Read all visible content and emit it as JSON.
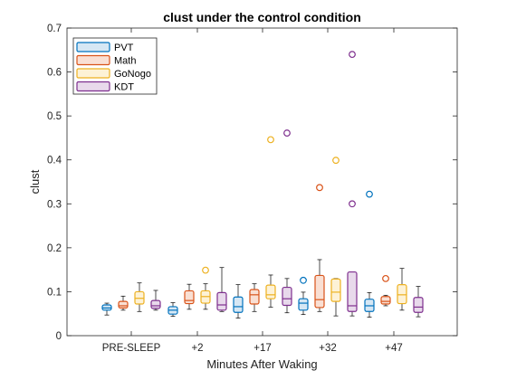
{
  "chart_data": {
    "type": "box",
    "title": "clust under the control condition",
    "xlabel": "Minutes After Waking",
    "ylabel": "clust",
    "ylim": [
      0,
      0.7
    ],
    "yticks": [
      "0",
      "0.1",
      "0.2",
      "0.3",
      "0.4",
      "0.5",
      "0.6",
      "0.7"
    ],
    "categories": [
      "PRE-SLEEP",
      "+2",
      "+17",
      "+32",
      "+47"
    ],
    "legend_position": "top-left",
    "grid": false,
    "series": [
      {
        "name": "PVT",
        "color": "#0072BD",
        "fill": "#d6e7f4",
        "boxes": [
          {
            "whisker_low": 0.047,
            "q1": 0.058,
            "median": 0.063,
            "q3": 0.07,
            "whisker_high": 0.074,
            "outliers": []
          },
          {
            "whisker_low": 0.044,
            "q1": 0.049,
            "median": 0.058,
            "q3": 0.066,
            "whisker_high": 0.075,
            "outliers": []
          },
          {
            "whisker_low": 0.04,
            "q1": 0.053,
            "median": 0.066,
            "q3": 0.088,
            "whisker_high": 0.116,
            "outliers": []
          },
          {
            "whisker_low": 0.048,
            "q1": 0.058,
            "median": 0.074,
            "q3": 0.084,
            "whisker_high": 0.099,
            "outliers": [
              0.126
            ]
          },
          {
            "whisker_low": 0.042,
            "q1": 0.055,
            "median": 0.068,
            "q3": 0.083,
            "whisker_high": 0.098,
            "outliers": [
              0.322
            ]
          }
        ]
      },
      {
        "name": "Math",
        "color": "#D95319",
        "fill": "#f9dfd3",
        "boxes": [
          {
            "whisker_low": 0.058,
            "q1": 0.063,
            "median": 0.068,
            "q3": 0.078,
            "whisker_high": 0.09,
            "outliers": []
          },
          {
            "whisker_low": 0.06,
            "q1": 0.073,
            "median": 0.08,
            "q3": 0.102,
            "whisker_high": 0.117,
            "outliers": []
          },
          {
            "whisker_low": 0.055,
            "q1": 0.072,
            "median": 0.093,
            "q3": 0.105,
            "whisker_high": 0.118,
            "outliers": []
          },
          {
            "whisker_low": 0.055,
            "q1": 0.064,
            "median": 0.082,
            "q3": 0.137,
            "whisker_high": 0.173,
            "outliers": [
              0.337
            ]
          },
          {
            "whisker_low": 0.068,
            "q1": 0.072,
            "median": 0.078,
            "q3": 0.089,
            "whisker_high": 0.092,
            "outliers": [
              0.13
            ]
          }
        ]
      },
      {
        "name": "GoNogo",
        "color": "#EDB120",
        "fill": "#fdf2d6",
        "boxes": [
          {
            "whisker_low": 0.055,
            "q1": 0.072,
            "median": 0.085,
            "q3": 0.1,
            "whisker_high": 0.12,
            "outliers": []
          },
          {
            "whisker_low": 0.06,
            "q1": 0.074,
            "median": 0.089,
            "q3": 0.102,
            "whisker_high": 0.118,
            "outliers": [
              0.149
            ]
          },
          {
            "whisker_low": 0.065,
            "q1": 0.084,
            "median": 0.093,
            "q3": 0.115,
            "whisker_high": 0.138,
            "outliers": [
              0.446
            ]
          },
          {
            "whisker_low": 0.045,
            "q1": 0.078,
            "median": 0.099,
            "q3": 0.129,
            "whisker_high": 0.13,
            "outliers": [
              0.399
            ]
          },
          {
            "whisker_low": 0.058,
            "q1": 0.073,
            "median": 0.093,
            "q3": 0.116,
            "whisker_high": 0.153,
            "outliers": []
          }
        ]
      },
      {
        "name": "KDT",
        "color": "#7E2F8E",
        "fill": "#e8d9eb",
        "boxes": [
          {
            "whisker_low": 0.058,
            "q1": 0.062,
            "median": 0.068,
            "q3": 0.08,
            "whisker_high": 0.103,
            "outliers": []
          },
          {
            "whisker_low": 0.055,
            "q1": 0.058,
            "median": 0.07,
            "q3": 0.098,
            "whisker_high": 0.155,
            "outliers": []
          },
          {
            "whisker_low": 0.052,
            "q1": 0.069,
            "median": 0.084,
            "q3": 0.11,
            "whisker_high": 0.13,
            "outliers": [
              0.461
            ]
          },
          {
            "whisker_low": 0.045,
            "q1": 0.055,
            "median": 0.068,
            "q3": 0.145,
            "whisker_high": 0.145,
            "outliers": [
              0.64,
              0.3
            ]
          },
          {
            "whisker_low": 0.043,
            "q1": 0.053,
            "median": 0.065,
            "q3": 0.087,
            "whisker_high": 0.112,
            "outliers": []
          }
        ]
      }
    ]
  }
}
